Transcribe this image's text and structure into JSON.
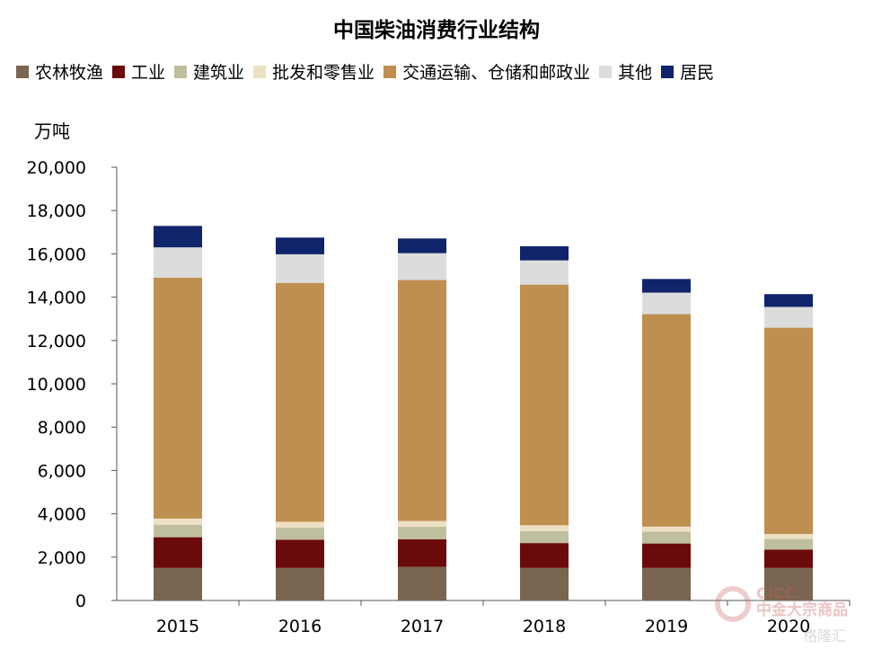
{
  "chart_data": {
    "type": "bar",
    "stacked": true,
    "title": "中国柴油消费行业结构",
    "ylabel": "万吨",
    "xlabel": "",
    "ylim": [
      0,
      20000
    ],
    "ytick_step": 2000,
    "ytick_labels": [
      "0",
      "2,000",
      "4,000",
      "6,000",
      "8,000",
      "10,000",
      "12,000",
      "14,000",
      "16,000",
      "18,000",
      "20,000"
    ],
    "legend_placement": "top",
    "grid": false,
    "categories": [
      "2015",
      "2016",
      "2017",
      "2018",
      "2019",
      "2020"
    ],
    "series": [
      {
        "name": "农林牧渔",
        "color": "#7a6550",
        "values": [
          1500,
          1500,
          1550,
          1500,
          1500,
          1500
        ]
      },
      {
        "name": "工业",
        "color": "#6b0a0a",
        "values": [
          1420,
          1300,
          1270,
          1150,
          1130,
          850
        ]
      },
      {
        "name": "建筑业",
        "color": "#bfbf9f",
        "values": [
          580,
          560,
          580,
          550,
          550,
          490
        ]
      },
      {
        "name": "批发和零售业",
        "color": "#ede0c4",
        "values": [
          280,
          270,
          270,
          270,
          230,
          230
        ]
      },
      {
        "name": "交通运输、仓储和邮政业",
        "color": "#bf8f50",
        "values": [
          11120,
          11030,
          11120,
          11110,
          9810,
          9520
        ]
      },
      {
        "name": "其他",
        "color": "#dcdcdc",
        "values": [
          1400,
          1320,
          1240,
          1120,
          990,
          960
        ]
      },
      {
        "name": "居民",
        "color": "#10246b",
        "values": [
          990,
          770,
          680,
          650,
          630,
          590
        ]
      }
    ]
  },
  "watermark": {
    "brand": "CICC",
    "brand_sub": "中金大宗商品",
    "site": "格隆汇"
  }
}
